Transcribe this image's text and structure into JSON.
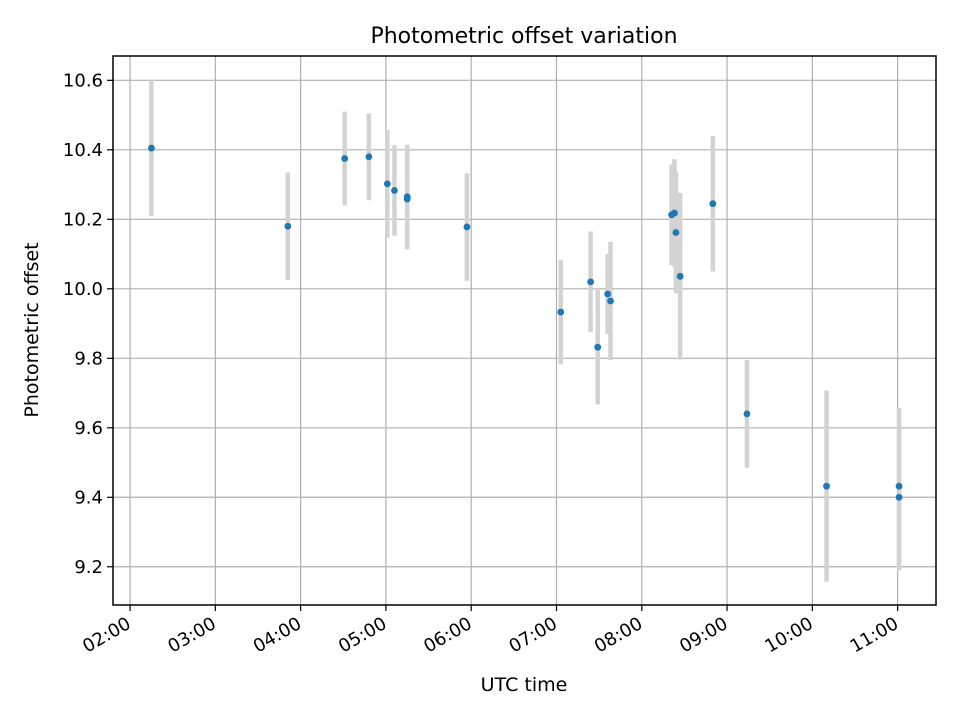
{
  "chart_data": {
    "type": "scatter",
    "title": "Photometric offset variation",
    "xlabel": "UTC time",
    "ylabel": "Photometric offset",
    "x_tick_labels": [
      "02:00",
      "03:00",
      "04:00",
      "05:00",
      "06:00",
      "07:00",
      "08:00",
      "09:00",
      "10:00",
      "11:00"
    ],
    "y_tick_labels": [
      "9.2",
      "9.4",
      "9.6",
      "9.8",
      "10.0",
      "10.2",
      "10.4",
      "10.6"
    ],
    "xlim": [
      "01:48",
      "11:27"
    ],
    "ylim": [
      9.09,
      10.67
    ],
    "grid": true,
    "colors": {
      "point": "#1f77b4",
      "errorbar": "#d3d3d3",
      "grid": "#b0b0b0",
      "axes": "#000000"
    },
    "points": [
      {
        "x": "02:15",
        "y": 10.405,
        "err": 0.195
      },
      {
        "x": "03:51",
        "y": 10.18,
        "err": 0.155
      },
      {
        "x": "04:31",
        "y": 10.375,
        "err": 0.135
      },
      {
        "x": "04:48",
        "y": 10.38,
        "err": 0.125
      },
      {
        "x": "05:01",
        "y": 10.302,
        "err": 0.155
      },
      {
        "x": "05:06",
        "y": 10.283,
        "err": 0.13
      },
      {
        "x": "05:15",
        "y": 10.258,
        "err": 0.145
      },
      {
        "x": "05:15",
        "y": 10.265,
        "err": 0.15
      },
      {
        "x": "05:57",
        "y": 10.178,
        "err": 0.155
      },
      {
        "x": "07:03",
        "y": 9.933,
        "err": 0.15
      },
      {
        "x": "07:24",
        "y": 10.02,
        "err": 0.145
      },
      {
        "x": "07:29",
        "y": 9.832,
        "err": 0.165
      },
      {
        "x": "07:36",
        "y": 9.985,
        "err": 0.115
      },
      {
        "x": "07:38",
        "y": 9.965,
        "err": 0.17
      },
      {
        "x": "08:21",
        "y": 10.213,
        "err": 0.145
      },
      {
        "x": "08:23",
        "y": 10.218,
        "err": 0.155
      },
      {
        "x": "08:24",
        "y": 10.162,
        "err": 0.175
      },
      {
        "x": "08:27",
        "y": 10.036,
        "err": 0.24
      },
      {
        "x": "08:50",
        "y": 10.245,
        "err": 0.195
      },
      {
        "x": "09:14",
        "y": 9.64,
        "err": 0.155
      },
      {
        "x": "10:10",
        "y": 9.432,
        "err": 0.275
      },
      {
        "x": "11:01",
        "y": 9.4,
        "err": 0.21
      },
      {
        "x": "11:01",
        "y": 9.432,
        "err": 0.225
      }
    ]
  }
}
